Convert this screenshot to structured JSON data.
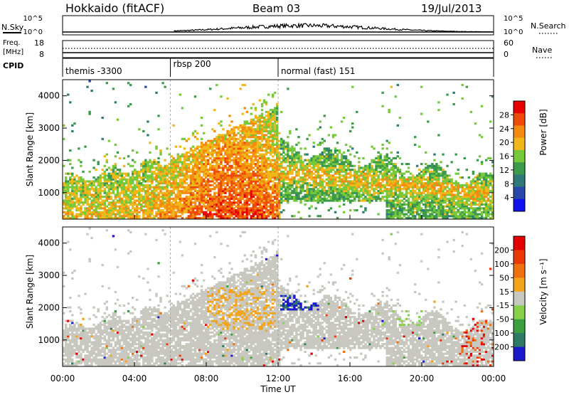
{
  "header": {
    "station": "Hokkaido (fitACF)",
    "beam": "Beam 03",
    "date": "19/Jul/2013"
  },
  "noise_panel": {
    "left_label": "N.Sky",
    "right_label": "N.Search",
    "left_ticks": [
      "10^5",
      "10^0"
    ],
    "right_ticks": [
      "10^5",
      "10^0"
    ]
  },
  "freq_panel": {
    "left_label_line1": "Freq.",
    "left_label_line2": "[MHz]",
    "right_label": "Nave",
    "left_ticks": [
      "18",
      "8"
    ],
    "right_ticks": [
      "60",
      "0"
    ]
  },
  "cpid": {
    "label": "CPID",
    "modes": [
      {
        "name": "themis -3300",
        "start_hour": 0,
        "end_hour": 6
      },
      {
        "name": "rbsp 200",
        "start_hour": 6,
        "end_hour": 12
      },
      {
        "name": "normal (fast) 151",
        "start_hour": 12,
        "end_hour": 24
      }
    ]
  },
  "chart_data": [
    {
      "type": "heatmap",
      "name": "power",
      "xlabel": "",
      "ylabel": "Slant Range [km]",
      "x_range_hours": [
        0,
        24
      ],
      "ylim": [
        180,
        4500
      ],
      "y_ticks": [
        1000,
        2000,
        3000,
        4000
      ],
      "colorbar": {
        "label": "Power [dB]",
        "range": [
          0,
          32
        ],
        "ticks": [
          4,
          8,
          12,
          16,
          20,
          24,
          28
        ],
        "colors": [
          "#1111ee",
          "#2a46a8",
          "#2f7a78",
          "#3c9a4c",
          "#78c83c",
          "#f0b818",
          "#f48a10",
          "#ee4a08",
          "#e80000"
        ]
      }
    },
    {
      "type": "heatmap",
      "name": "velocity",
      "xlabel": "Time UT",
      "ylabel": "Slant Range [km]",
      "x_range_hours": [
        0,
        24
      ],
      "x_ticks": [
        "00:00",
        "04:00",
        "08:00",
        "12:00",
        "16:00",
        "20:00",
        "00:00"
      ],
      "ylim": [
        180,
        4500
      ],
      "y_ticks": [
        1000,
        2000,
        3000,
        4000
      ],
      "colorbar": {
        "label": "Velocity [m s⁻¹]",
        "ticks": [
          "200",
          "100",
          "50",
          "15",
          "-15",
          "-50",
          "-100",
          "-200"
        ],
        "colors": [
          "#1a1acc",
          "#2f7a66",
          "#3ca040",
          "#86d04c",
          "#c8c8c0",
          "#f4a418",
          "#f07010",
          "#ea3808",
          "#e40000"
        ]
      }
    }
  ]
}
